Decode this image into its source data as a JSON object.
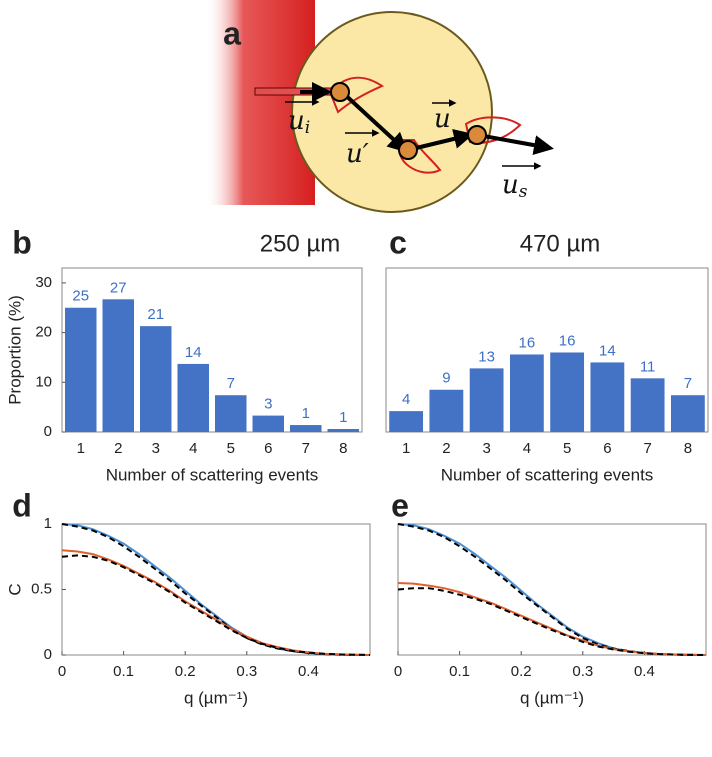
{
  "panel_a": {
    "label": "a",
    "vectors": [
      {
        "symbol": "u",
        "sub": "i"
      },
      {
        "symbol": "u′"
      },
      {
        "symbol": "u"
      },
      {
        "symbol": "u",
        "sub": "s"
      }
    ]
  },
  "chart_data": [
    {
      "type": "bar",
      "panel_label": "b",
      "title": "250 µm",
      "ylabel": "Proportion (%)",
      "xlabel": "Number of scattering events",
      "categories": [
        "1",
        "2",
        "3",
        "4",
        "5",
        "6",
        "7",
        "8"
      ],
      "values": [
        25,
        26.7,
        21.3,
        13.7,
        7.4,
        3.3,
        1.4,
        0.6
      ],
      "value_labels": [
        "25",
        "27",
        "21",
        "14",
        "7",
        "3",
        "1",
        "1"
      ],
      "color": "#4472c4",
      "ylim": [
        0,
        33
      ],
      "yticks": [
        0,
        10,
        20,
        30
      ]
    },
    {
      "type": "bar",
      "panel_label": "c",
      "title": "470 µm",
      "xlabel": "Number of scattering events",
      "categories": [
        "1",
        "2",
        "3",
        "4",
        "5",
        "6",
        "7",
        "8"
      ],
      "values": [
        4.2,
        8.5,
        12.8,
        15.6,
        16.0,
        14.0,
        10.8,
        7.4
      ],
      "value_labels": [
        "4",
        "9",
        "13",
        "16",
        "16",
        "14",
        "11",
        "7"
      ],
      "color": "#4472c4",
      "ylim": [
        0,
        33
      ]
    },
    {
      "type": "line",
      "panel_label": "d",
      "ylabel": "C",
      "xlabel": "q (µm⁻¹)",
      "x": [
        0,
        0.025,
        0.05,
        0.075,
        0.1,
        0.125,
        0.15,
        0.175,
        0.2,
        0.225,
        0.25,
        0.275,
        0.3,
        0.325,
        0.35,
        0.375,
        0.4,
        0.425,
        0.45,
        0.475,
        0.5
      ],
      "xlim": [
        0,
        0.5
      ],
      "xticks": [
        0,
        0.1,
        0.2,
        0.3,
        0.4
      ],
      "ylim": [
        0,
        1
      ],
      "yticks": [
        0,
        0.5,
        1
      ],
      "series": [
        {
          "color": "#4a8fd4",
          "values": [
            1.0,
            0.99,
            0.96,
            0.91,
            0.85,
            0.77,
            0.68,
            0.59,
            0.49,
            0.39,
            0.3,
            0.21,
            0.14,
            0.09,
            0.05,
            0.03,
            0.015,
            0.007,
            0.003,
            0.001,
            0
          ]
        },
        {
          "color": "#000000",
          "dash": true,
          "values": [
            1.0,
            0.98,
            0.95,
            0.9,
            0.83,
            0.75,
            0.66,
            0.57,
            0.47,
            0.38,
            0.29,
            0.2,
            0.13,
            0.08,
            0.05,
            0.03,
            0.015,
            0.007,
            0.003,
            0.001,
            0
          ]
        },
        {
          "color": "#e06030",
          "values": [
            0.8,
            0.79,
            0.77,
            0.73,
            0.68,
            0.62,
            0.56,
            0.49,
            0.41,
            0.34,
            0.27,
            0.2,
            0.14,
            0.09,
            0.06,
            0.035,
            0.02,
            0.01,
            0.005,
            0.002,
            0
          ]
        },
        {
          "color": "#000000",
          "dash": true,
          "values": [
            0.75,
            0.76,
            0.75,
            0.72,
            0.67,
            0.61,
            0.55,
            0.48,
            0.4,
            0.33,
            0.26,
            0.19,
            0.13,
            0.085,
            0.055,
            0.03,
            0.018,
            0.009,
            0.004,
            0.002,
            0
          ]
        }
      ]
    },
    {
      "type": "line",
      "panel_label": "e",
      "xlabel": "q (µm⁻¹)",
      "x": [
        0,
        0.025,
        0.05,
        0.075,
        0.1,
        0.125,
        0.15,
        0.175,
        0.2,
        0.225,
        0.25,
        0.275,
        0.3,
        0.325,
        0.35,
        0.375,
        0.4,
        0.425,
        0.45,
        0.475,
        0.5
      ],
      "xlim": [
        0,
        0.5
      ],
      "xticks": [
        0,
        0.1,
        0.2,
        0.3,
        0.4
      ],
      "ylim": [
        0,
        1
      ],
      "series": [
        {
          "color": "#4a8fd4",
          "values": [
            1.0,
            0.99,
            0.96,
            0.91,
            0.85,
            0.77,
            0.68,
            0.59,
            0.49,
            0.39,
            0.3,
            0.21,
            0.14,
            0.09,
            0.05,
            0.03,
            0.015,
            0.007,
            0.003,
            0.001,
            0
          ]
        },
        {
          "color": "#000000",
          "dash": true,
          "values": [
            1.0,
            0.98,
            0.95,
            0.9,
            0.83,
            0.75,
            0.66,
            0.57,
            0.47,
            0.38,
            0.29,
            0.2,
            0.13,
            0.08,
            0.05,
            0.03,
            0.015,
            0.007,
            0.003,
            0.001,
            0
          ]
        },
        {
          "color": "#e06030",
          "values": [
            0.55,
            0.545,
            0.53,
            0.51,
            0.48,
            0.44,
            0.4,
            0.35,
            0.3,
            0.25,
            0.2,
            0.15,
            0.11,
            0.07,
            0.045,
            0.027,
            0.015,
            0.008,
            0.004,
            0.002,
            0
          ]
        },
        {
          "color": "#000000",
          "dash": true,
          "values": [
            0.5,
            0.51,
            0.51,
            0.49,
            0.46,
            0.43,
            0.39,
            0.34,
            0.29,
            0.24,
            0.19,
            0.145,
            0.1,
            0.065,
            0.042,
            0.025,
            0.014,
            0.007,
            0.003,
            0.001,
            0
          ]
        }
      ]
    }
  ]
}
